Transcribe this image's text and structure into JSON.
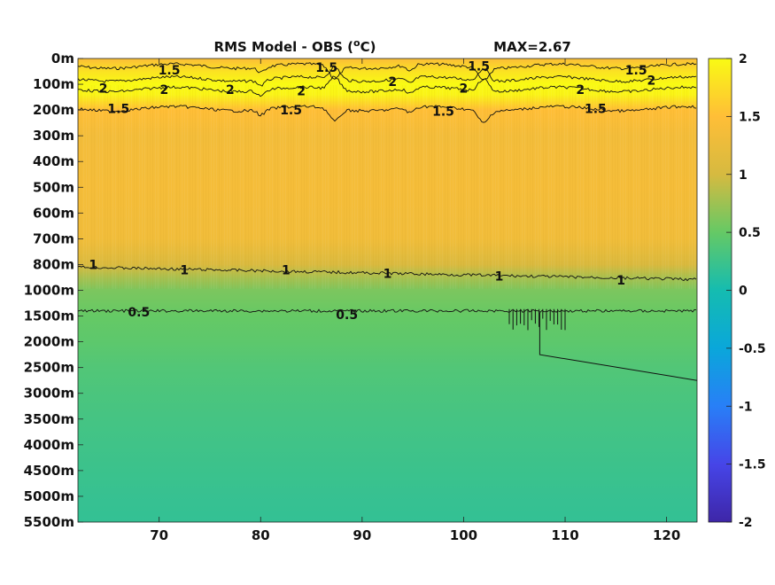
{
  "chart_data": {
    "type": "heatmap",
    "title": "RMS Model - OBS (",
    "title_superscript": "o",
    "title_unit": "C)",
    "max_label": "MAX=2.67",
    "xlabel": "",
    "ylabel": "",
    "xlim": [
      62,
      123
    ],
    "x_ticks": [
      70,
      80,
      90,
      100,
      110,
      120
    ],
    "y_ticks": [
      "0m",
      "100m",
      "200m",
      "300m",
      "400m",
      "500m",
      "600m",
      "700m",
      "800m",
      "1000m",
      "1500m",
      "2000m",
      "2500m",
      "3000m",
      "3500m",
      "4000m",
      "4500m",
      "5000m",
      "5500m"
    ],
    "colorbar": {
      "range": [
        -2,
        2
      ],
      "ticks": [
        "2",
        "1.5",
        "1",
        "0.5",
        "0",
        "-0.5",
        "-1",
        "-1.5",
        "-2"
      ],
      "colormap": "parula"
    },
    "depth_profile": {
      "depth_index": [
        0,
        0.5,
        1,
        1.4,
        2,
        3,
        5,
        7,
        7.5,
        8,
        8.5,
        9,
        10,
        11,
        12,
        13,
        14,
        15,
        16,
        17,
        18
      ],
      "value": [
        1.45,
        1.8,
        2.05,
        1.95,
        1.5,
        1.35,
        1.38,
        1.33,
        1.2,
        1.05,
        0.8,
        0.6,
        0.5,
        0.45,
        0.38,
        0.34,
        0.3,
        0.27,
        0.24,
        0.21,
        0.19
      ]
    },
    "contours": [
      {
        "level": 1.5,
        "depth_index": 0.3
      },
      {
        "level": 2,
        "depth_index": 0.8
      },
      {
        "level": 2,
        "depth_index": 1.2
      },
      {
        "level": 1.5,
        "depth_index": 1.95
      },
      {
        "level": 1,
        "depth_index": 8.1
      },
      {
        "level": 0.5,
        "depth_index": 9.8
      }
    ],
    "contour_labels": [
      {
        "text": "1.5",
        "x": 71,
        "d": 0.45
      },
      {
        "text": "1.5",
        "x": 86.5,
        "d": 0.35
      },
      {
        "text": "1.5",
        "x": 101.5,
        "d": 0.3
      },
      {
        "text": "1.5",
        "x": 117,
        "d": 0.45
      },
      {
        "text": "2",
        "x": 64.5,
        "d": 1.15
      },
      {
        "text": "2",
        "x": 70.5,
        "d": 1.2
      },
      {
        "text": "2",
        "x": 77,
        "d": 1.2
      },
      {
        "text": "2",
        "x": 84,
        "d": 1.25
      },
      {
        "text": "2",
        "x": 93,
        "d": 0.9
      },
      {
        "text": "2",
        "x": 100,
        "d": 1.15
      },
      {
        "text": "2",
        "x": 111.5,
        "d": 1.2
      },
      {
        "text": "2",
        "x": 118.5,
        "d": 0.85
      },
      {
        "text": "1.5",
        "x": 66,
        "d": 1.95
      },
      {
        "text": "1.5",
        "x": 83,
        "d": 2.0
      },
      {
        "text": "1.5",
        "x": 98,
        "d": 2.05
      },
      {
        "text": "1.5",
        "x": 113,
        "d": 1.95
      },
      {
        "text": "1",
        "x": 63.5,
        "d": 8.0
      },
      {
        "text": "1",
        "x": 72.5,
        "d": 8.2
      },
      {
        "text": "1",
        "x": 82.5,
        "d": 8.2
      },
      {
        "text": "1",
        "x": 92.5,
        "d": 8.35
      },
      {
        "text": "1",
        "x": 103.5,
        "d": 8.45
      },
      {
        "text": "1",
        "x": 115.5,
        "d": 8.6
      },
      {
        "text": "0.5",
        "x": 68,
        "d": 9.85
      },
      {
        "text": "0.5",
        "x": 88.5,
        "d": 9.95
      }
    ]
  }
}
